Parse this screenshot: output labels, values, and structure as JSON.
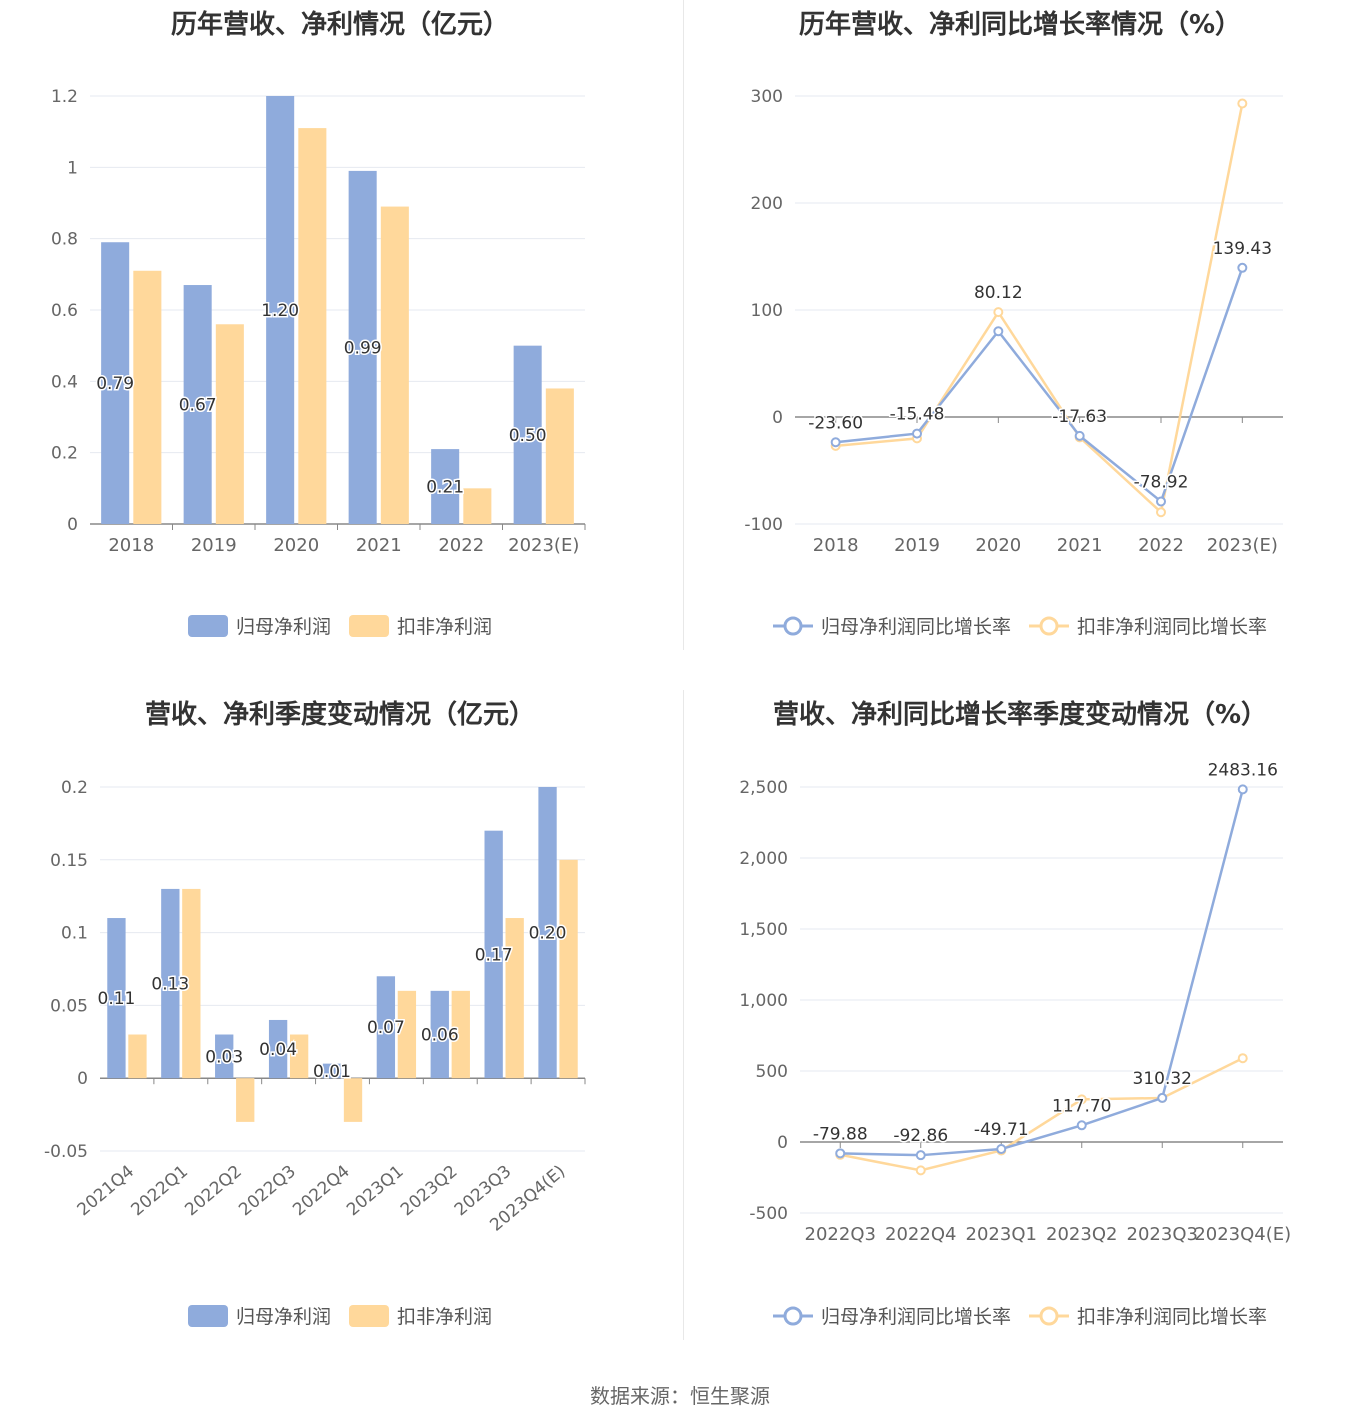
{
  "colors": {
    "blue": "#8fabdc",
    "orange": "#ffd89b",
    "grid": "#e6e9f0",
    "axis": "#888888",
    "label": "#666666"
  },
  "source": "数据来源：恒生聚源",
  "chart_data": [
    {
      "type": "bar",
      "title": "历年营收、净利情况（亿元）",
      "categories": [
        "2018",
        "2019",
        "2020",
        "2021",
        "2022",
        "2023(E)"
      ],
      "series": [
        {
          "name": "归母净利润",
          "values": [
            0.79,
            0.67,
            1.2,
            0.99,
            0.21,
            0.5
          ],
          "labels": [
            "0.79",
            "0.67",
            "1.20",
            "0.99",
            "0.21",
            "0.50"
          ]
        },
        {
          "name": "扣非净利润",
          "values": [
            0.71,
            0.56,
            1.11,
            0.89,
            0.1,
            0.38
          ]
        }
      ],
      "ylim": [
        0,
        1.2
      ],
      "yticks": [
        "0",
        "0.2",
        "0.4",
        "0.6",
        "0.8",
        "1",
        "1.2"
      ],
      "grid": true,
      "legend": "bottom"
    },
    {
      "type": "line",
      "title": "历年营收、净利同比增长率情况（%）",
      "categories": [
        "2018",
        "2019",
        "2020",
        "2021",
        "2022",
        "2023(E)"
      ],
      "series": [
        {
          "name": "归母净利润同比增长率",
          "values": [
            -23.6,
            -15.48,
            80.12,
            -17.63,
            -78.92,
            139.43
          ],
          "labels": [
            "-23.60",
            "-15.48",
            "80.12",
            "-17.63",
            "-78.92",
            "139.43"
          ]
        },
        {
          "name": "扣非净利润同比增长率",
          "values": [
            -27,
            -20,
            98,
            -19,
            -89,
            293
          ]
        }
      ],
      "ylim": [
        -100,
        300
      ],
      "yticks": [
        "-100",
        "0",
        "100",
        "200",
        "300"
      ],
      "grid": true,
      "legend": "bottom"
    },
    {
      "type": "bar",
      "title": "营收、净利季度变动情况（亿元）",
      "categories": [
        "2021Q4",
        "2022Q1",
        "2022Q2",
        "2022Q3",
        "2022Q4",
        "2023Q1",
        "2023Q2",
        "2023Q3",
        "2023Q4(E)"
      ],
      "series": [
        {
          "name": "归母净利润",
          "values": [
            0.11,
            0.13,
            0.03,
            0.04,
            0.01,
            0.07,
            0.06,
            0.17,
            0.2
          ],
          "labels": [
            "0.11",
            "0.13",
            "0.03",
            "0.04",
            "0.01",
            "0.07",
            "0.06",
            "0.17",
            "0.20"
          ]
        },
        {
          "name": "扣非净利润",
          "values": [
            0.03,
            0.13,
            -0.03,
            0.03,
            -0.03,
            0.06,
            0.06,
            0.11,
            0.15
          ]
        }
      ],
      "ylim": [
        -0.05,
        0.2
      ],
      "yticks": [
        "-0.05",
        "0",
        "0.05",
        "0.1",
        "0.15",
        "0.2"
      ],
      "grid": true,
      "legend": "bottom"
    },
    {
      "type": "line",
      "title": "营收、净利同比增长率季度变动情况（%）",
      "categories": [
        "2022Q3",
        "2022Q4",
        "2023Q1",
        "2023Q2",
        "2023Q3",
        "2023Q4(E)"
      ],
      "series": [
        {
          "name": "归母净利润同比增长率",
          "values": [
            -79.88,
            -92.86,
            -49.71,
            117.7,
            310.32,
            2483.16
          ],
          "labels": [
            "-79.88",
            "-92.86",
            "-49.71",
            "117.70",
            "310.32",
            "2483.16"
          ]
        },
        {
          "name": "扣非净利润同比增长率",
          "values": [
            -90,
            -200,
            -60,
            300,
            310,
            590
          ]
        }
      ],
      "ylim": [
        -500,
        2500
      ],
      "yticks": [
        "-500",
        "0",
        "500",
        "1,000",
        "1,500",
        "2,000",
        "2,500"
      ],
      "grid": true,
      "legend": "bottom"
    }
  ]
}
